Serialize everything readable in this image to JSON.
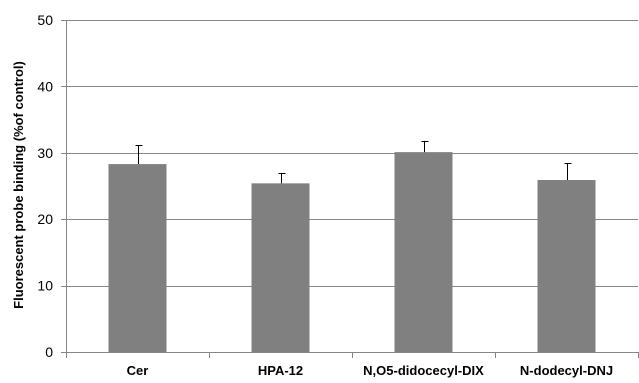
{
  "chart_data": {
    "type": "bar",
    "title": "",
    "xlabel": "",
    "ylabel": "Fluorescent probe binding (%of control)",
    "categories": [
      "Cer",
      "HPA-12",
      "N,O5-didocecyl-DIX",
      "N-dodecyl-DNJ"
    ],
    "series": [
      {
        "values": [
          28.3,
          25.4,
          30.1,
          25.9
        ],
        "error_plus": [
          2.8,
          1.5,
          1.7,
          2.5
        ]
      }
    ],
    "ylim": [
      0,
      50
    ],
    "yticks": [
      0,
      10,
      20,
      30,
      40,
      50
    ],
    "grid": true,
    "legend": "none",
    "colors": {
      "bar": "#808080",
      "grid": "#868686",
      "axis": "#868686",
      "error_bar": "#000000"
    }
  }
}
